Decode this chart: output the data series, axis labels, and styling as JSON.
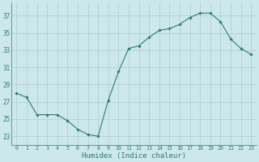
{
  "x": [
    0,
    1,
    2,
    3,
    4,
    5,
    6,
    7,
    8,
    9,
    10,
    11,
    12,
    13,
    14,
    15,
    16,
    17,
    18,
    19,
    20,
    21,
    22,
    23
  ],
  "y": [
    28.0,
    27.5,
    25.5,
    25.5,
    25.5,
    24.8,
    23.8,
    23.2,
    23.0,
    27.2,
    30.5,
    33.2,
    33.5,
    34.5,
    35.3,
    35.5,
    36.0,
    36.8,
    37.3,
    37.3,
    36.3,
    34.3,
    33.2,
    32.5
  ],
  "line_color": "#2d7d6d",
  "marker": "D",
  "marker_size": 1.8,
  "bg_color": "#cde8ea",
  "grid_color": "#b0ccce",
  "tick_color": "#2d7d6d",
  "xlabel": "Humidex (Indice chaleur)",
  "yticks": [
    23,
    25,
    27,
    29,
    31,
    33,
    35,
    37
  ],
  "xtick_labels": [
    "0",
    "1",
    "2",
    "3",
    "4",
    "5",
    "6",
    "7",
    "8",
    "9",
    "10",
    "11",
    "12",
    "13",
    "14",
    "15",
    "16",
    "17",
    "18",
    "19",
    "20",
    "21",
    "22",
    "23"
  ],
  "ylim": [
    22.0,
    38.5
  ],
  "xlim": [
    -0.5,
    23.5
  ],
  "ytick_fontsize": 5.5,
  "xtick_fontsize": 4.8,
  "xlabel_fontsize": 6.5,
  "linewidth": 0.8
}
